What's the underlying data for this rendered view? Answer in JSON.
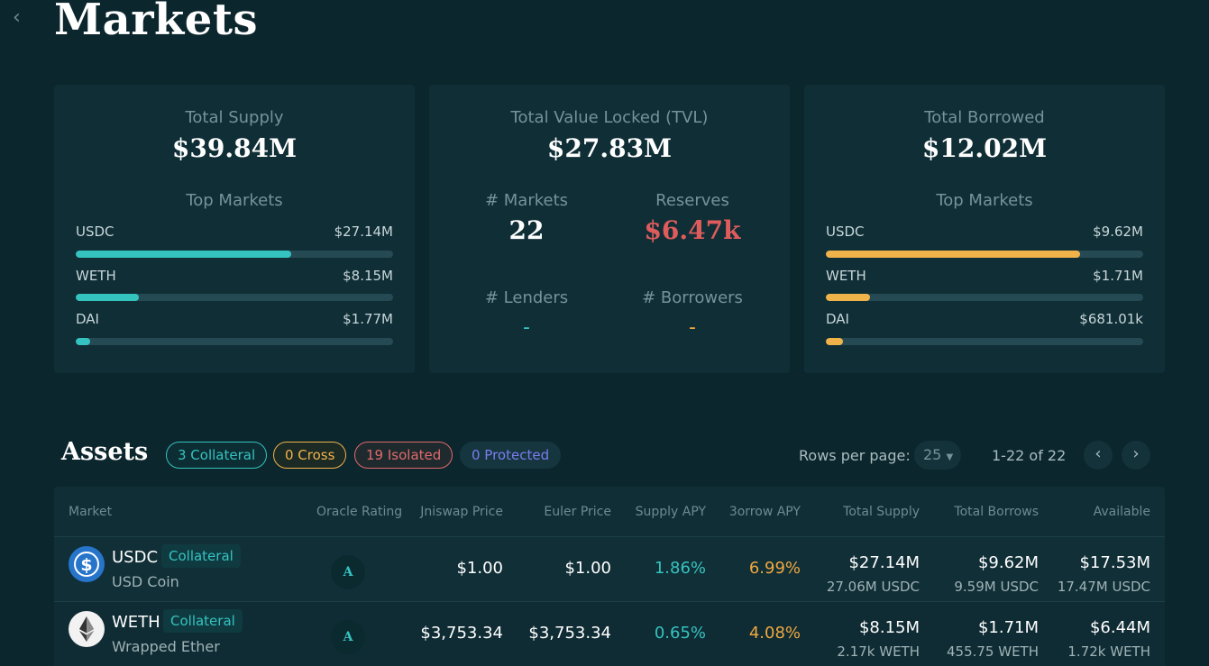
{
  "nav": {
    "back_icon": "chevron-left-icon",
    "title": "Markets"
  },
  "supply_card": {
    "label": "Total Supply",
    "value": "$39.84M",
    "top_label": "Top Markets",
    "accent": "#35c3c0",
    "markets": [
      {
        "symbol": "USDC",
        "amount": "$27.14M",
        "share": 0.68
      },
      {
        "symbol": "WETH",
        "amount": "$8.15M",
        "share": 0.2
      },
      {
        "symbol": "DAI",
        "amount": "$1.77M",
        "share": 0.045
      }
    ]
  },
  "tvl_card": {
    "label": "Total Value Locked (TVL)",
    "value": "$27.83M",
    "markets_label": "# Markets",
    "markets_value": "22",
    "reserves_label": "Reserves",
    "reserves_value": "$6.47k",
    "lenders_label": "# Lenders",
    "lenders_value": "-",
    "borrowers_label": "# Borrowers",
    "borrowers_value": "-"
  },
  "borrow_card": {
    "label": "Total Borrowed",
    "value": "$12.02M",
    "top_label": "Top Markets",
    "accent": "#f0b34a",
    "markets": [
      {
        "symbol": "USDC",
        "amount": "$9.62M",
        "share": 0.8
      },
      {
        "symbol": "WETH",
        "amount": "$1.71M",
        "share": 0.14
      },
      {
        "symbol": "DAI",
        "amount": "$681.01k",
        "share": 0.055
      }
    ]
  },
  "assets": {
    "title": "Assets",
    "chips": {
      "collateral": "3 Collateral",
      "cross": "0 Cross",
      "isolated": "19 Isolated",
      "protected": "0 Protected"
    },
    "rows_per_page_label": "Rows per page:",
    "rows_per_page_value": "25",
    "page_info": "1-22 of 22",
    "columns": [
      "Market",
      "Oracle Rating",
      "Jniswap Price",
      "Euler Price",
      "Supply APY",
      "3orrow APY",
      "Total Supply",
      "Total Borrows",
      "Available"
    ],
    "rows": [
      {
        "symbol": "USDC",
        "tag": "Collateral",
        "name": "USD Coin",
        "icon": "usdc-coin-icon",
        "oracle": "A",
        "uniswap_price": "$1.00",
        "euler_price": "$1.00",
        "supply_apy": "1.86%",
        "borrow_apy": "6.99%",
        "total_supply": "$27.14M",
        "total_supply_sub": "27.06M USDC",
        "total_borrows": "$9.62M",
        "total_borrows_sub": "9.59M USDC",
        "available": "$17.53M",
        "available_sub": "17.47M USDC"
      },
      {
        "symbol": "WETH",
        "tag": "Collateral",
        "name": "Wrapped Ether",
        "icon": "ethereum-icon",
        "oracle": "A",
        "uniswap_price": "$3,753.34",
        "euler_price": "$3,753.34",
        "supply_apy": "0.65%",
        "borrow_apy": "4.08%",
        "total_supply": "$8.15M",
        "total_supply_sub": "2.17k WETH",
        "total_borrows": "$1.71M",
        "total_borrows_sub": "455.75 WETH",
        "available": "$6.44M",
        "available_sub": "1.72k WETH"
      }
    ]
  }
}
